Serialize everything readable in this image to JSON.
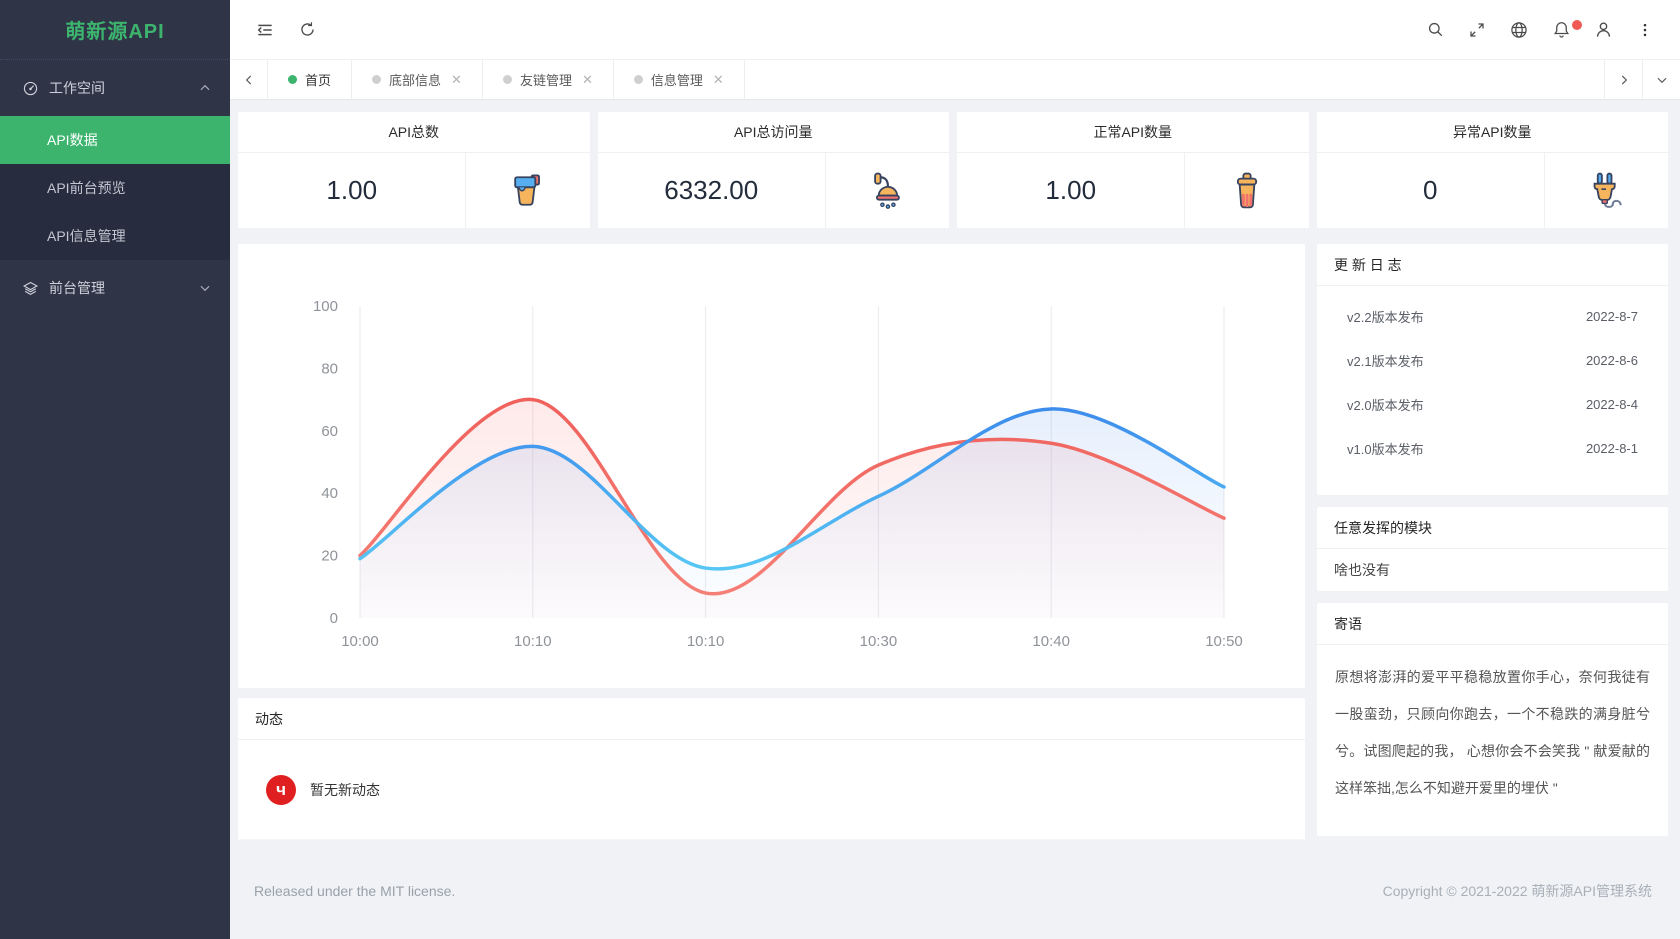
{
  "app": {
    "logo": "萌新源API"
  },
  "sidebar": {
    "sections": [
      {
        "label": "工作空间",
        "icon": "dashboard-icon",
        "state": "expanded",
        "children": [
          {
            "label": "API数据",
            "active": true
          },
          {
            "label": "API前台预览",
            "active": false
          },
          {
            "label": "API信息管理",
            "active": false
          }
        ]
      },
      {
        "label": "前台管理",
        "icon": "layers-icon",
        "state": "collapsed",
        "children": []
      }
    ]
  },
  "header": {
    "left_icons": [
      "menu-fold-icon",
      "refresh-icon"
    ],
    "right_icons": [
      "search-icon",
      "fullscreen-icon",
      "globe-icon",
      "bell-icon",
      "user-icon",
      "more-icon"
    ],
    "notification_dot_color": "#f05a54"
  },
  "tabs": {
    "items": [
      {
        "label": "首页",
        "active": true,
        "closable": false
      },
      {
        "label": "底部信息",
        "active": false,
        "closable": true
      },
      {
        "label": "友链管理",
        "active": false,
        "closable": true
      },
      {
        "label": "信息管理",
        "active": false,
        "closable": true
      }
    ],
    "close_glyph": "✕"
  },
  "stats": [
    {
      "title": "API总数",
      "value": "1.00",
      "icon": "paint-bucket-icon"
    },
    {
      "title": "API总访问量",
      "value": "6332.00",
      "icon": "shower-icon"
    },
    {
      "title": "正常API数量",
      "value": "1.00",
      "icon": "trash-icon"
    },
    {
      "title": "异常API数量",
      "value": "0",
      "icon": "plug-icon"
    }
  ],
  "chart_data": {
    "type": "line",
    "x": [
      "10:00",
      "10:10",
      "10:10",
      "10:30",
      "10:40",
      "10:50"
    ],
    "series": [
      {
        "name": "series-red",
        "values": [
          20,
          70,
          8,
          49,
          56,
          32
        ],
        "line_gradient": [
          "#f5837a",
          "#ed524e"
        ],
        "area_gradient": [
          "rgba(244,108,108,0.02)",
          "rgba(244,108,108,0.20)"
        ]
      },
      {
        "name": "series-blue",
        "values": [
          19,
          55,
          16,
          39,
          67,
          42
        ],
        "line_gradient": [
          "#5fd8f7",
          "#2c67e6"
        ],
        "area_gradient": [
          "rgba(110,180,250,0.02)",
          "rgba(64,120,230,0.20)"
        ]
      }
    ],
    "ylim": [
      0,
      100
    ],
    "yticks": [
      0,
      20,
      40,
      60,
      80,
      100
    ],
    "grid": "vertical-only",
    "smooth": true,
    "legend": "none",
    "title": ""
  },
  "update_log": {
    "title": "更 新 日 志",
    "items": [
      {
        "label": "v2.2版本发布",
        "date": "2022-8-7"
      },
      {
        "label": "v2.1版本发布",
        "date": "2022-8-6"
      },
      {
        "label": "v2.0版本发布",
        "date": "2022-8-4"
      },
      {
        "label": "v1.0版本发布",
        "date": "2022-8-1"
      }
    ]
  },
  "free_module": {
    "title": "任意发挥的模块",
    "body": "啥也没有"
  },
  "message": {
    "title": "寄语",
    "body": "原想将澎湃的爱平平稳稳放置你手心，奈何我徒有一股蛮劲，只顾向你跑去，一个不稳跌的满身脏兮兮。试图爬起的我， 心想你会不会笑我 \" 献爱献的这样笨拙,怎么不知避开爱里的埋伏 \""
  },
  "activity": {
    "title": "动态",
    "empty_text": "暂无新动态",
    "avatar_letter": "ч"
  },
  "footer": {
    "left": "Released under the MIT license.",
    "right": "Copyright © 2021-2022 萌新源API管理系统"
  },
  "colors": {
    "primary": "#3cb46e",
    "sidebar_bg": "#2f3447",
    "submenu_bg": "#272c3e",
    "page_bg": "#f0f2f5"
  }
}
